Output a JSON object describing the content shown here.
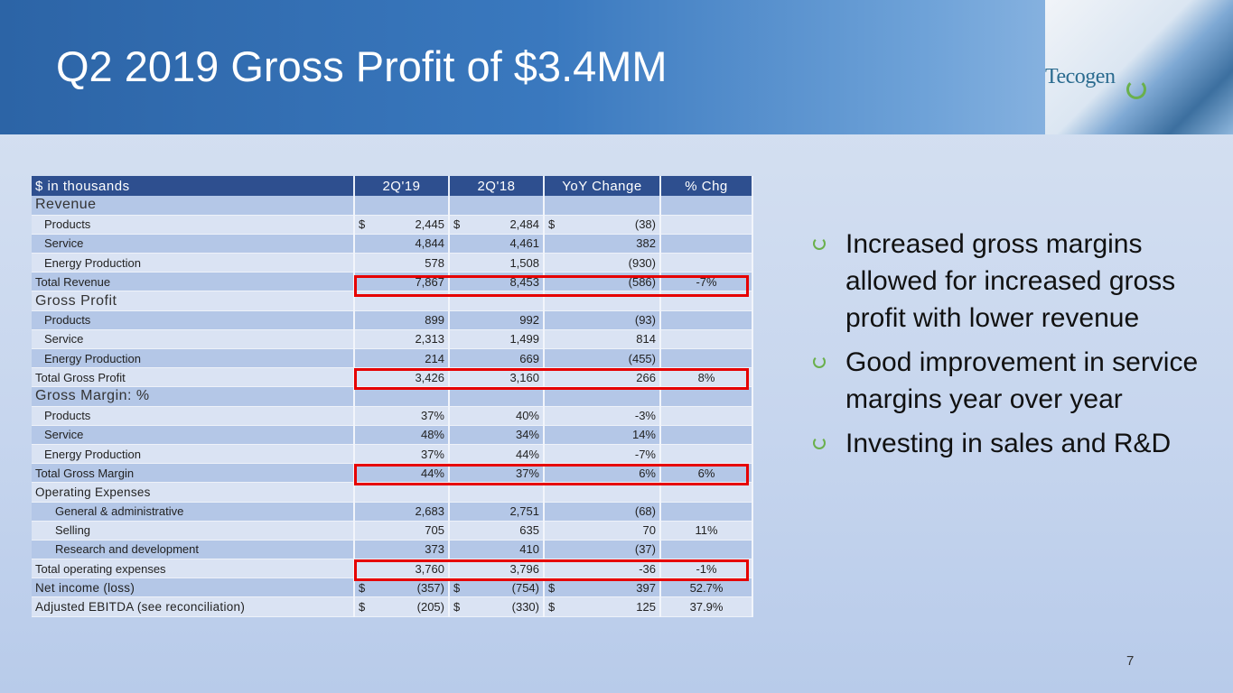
{
  "title": "Q2 2019 Gross Profit of $3.4MM",
  "logo": "Tecogen",
  "table": {
    "headers": [
      "$ in thousands",
      "2Q'19",
      "2Q'18",
      "YoY Change",
      "% Chg"
    ],
    "rows": [
      {
        "label": "Revenue",
        "type": "sec",
        "c1": "",
        "c2": "",
        "c3": "",
        "c4": ""
      },
      {
        "label": "Products",
        "type": "i1",
        "cur": true,
        "c1": "2,445",
        "c2": "2,484",
        "c3": "(38)",
        "c4": ""
      },
      {
        "label": "Service",
        "type": "i1",
        "c1": "4,844",
        "c2": "4,461",
        "c3": "382",
        "c4": ""
      },
      {
        "label": "Energy Production",
        "type": "i1",
        "c1": "578",
        "c2": "1,508",
        "c3": "(930)",
        "c4": ""
      },
      {
        "label": "Total Revenue",
        "type": "tot",
        "c1": "7,867",
        "c2": "8,453",
        "c3": "(586)",
        "c4": "-7%"
      },
      {
        "label": "Gross Profit",
        "type": "sec",
        "c1": "",
        "c2": "",
        "c3": "",
        "c4": ""
      },
      {
        "label": "Products",
        "type": "i1",
        "c1": "899",
        "c2": "992",
        "c3": "(93)",
        "c4": ""
      },
      {
        "label": "Service",
        "type": "i1",
        "c1": "2,313",
        "c2": "1,499",
        "c3": "814",
        "c4": ""
      },
      {
        "label": "Energy Production",
        "type": "i1",
        "c1": "214",
        "c2": "669",
        "c3": "(455)",
        "c4": ""
      },
      {
        "label": "Total Gross Profit",
        "type": "tot",
        "c1": "3,426",
        "c2": "3,160",
        "c3": "266",
        "c4": "8%"
      },
      {
        "label": "Gross Margin: %",
        "type": "sec",
        "c1": "",
        "c2": "",
        "c3": "",
        "c4": ""
      },
      {
        "label": "Products",
        "type": "i1",
        "c1": "37%",
        "c2": "40%",
        "c3": "-3%",
        "c4": ""
      },
      {
        "label": "Service",
        "type": "i1",
        "c1": "48%",
        "c2": "34%",
        "c3": "14%",
        "c4": ""
      },
      {
        "label": "Energy Production",
        "type": "i1",
        "c1": "37%",
        "c2": "44%",
        "c3": "-7%",
        "c4": ""
      },
      {
        "label": "Total Gross Margin",
        "type": "tot",
        "c1": "44%",
        "c2": "37%",
        "c3": "6%",
        "c4": "6%"
      },
      {
        "label": "Operating Expenses",
        "type": "big",
        "c1": "",
        "c2": "",
        "c3": "",
        "c4": ""
      },
      {
        "label": "General & administrative",
        "type": "i2",
        "c1": "2,683",
        "c2": "2,751",
        "c3": "(68)",
        "c4": ""
      },
      {
        "label": "Selling",
        "type": "i2",
        "c1": "705",
        "c2": "635",
        "c3": "70",
        "c4": "11%"
      },
      {
        "label": "Research and development",
        "type": "i2",
        "c1": "373",
        "c2": "410",
        "c3": "(37)",
        "c4": ""
      },
      {
        "label": "Total operating expenses",
        "type": "tot",
        "c1": "3,760",
        "c2": "3,796",
        "c3": "-36",
        "c4": "-1%"
      },
      {
        "label": "Net income (loss)",
        "type": "big",
        "cur": true,
        "c1": "(357)",
        "c2": "(754)",
        "c3": "397",
        "c4": "52.7%"
      },
      {
        "label": "Adjusted EBITDA (see reconciliation)",
        "type": "big",
        "cur": true,
        "c1": "(205)",
        "c2": "(330)",
        "c3": "125",
        "c4": "37.9%"
      }
    ],
    "currency_symbol": "$"
  },
  "bullets": [
    "Increased gross margins allowed for increased gross profit with lower revenue",
    "Good improvement in service margins year over year",
    "Investing in sales and R&D"
  ],
  "page_number": "7",
  "colors": {
    "header_bar": "#2e4f8f",
    "highlight_box": "#e60000",
    "bullet": "#6ab04c"
  }
}
